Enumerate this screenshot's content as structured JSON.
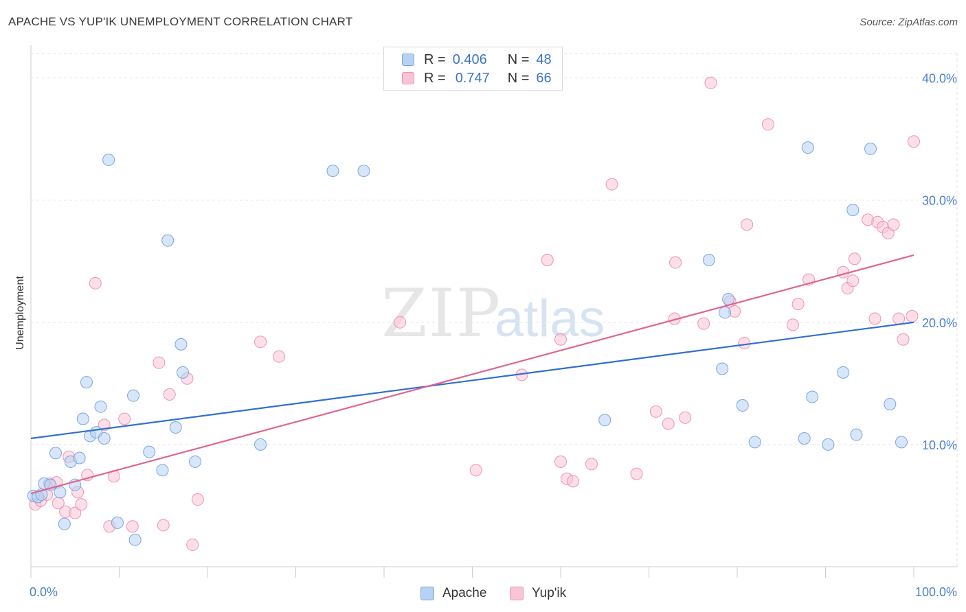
{
  "title": "APACHE VS YUP'IK UNEMPLOYMENT CORRELATION CHART",
  "source": "Source: ZipAtlas.com",
  "watermark": {
    "zip": "ZIP",
    "atlas": "atlas"
  },
  "colors": {
    "apache_fill": "#b7d1f3",
    "apache_stroke": "#7aa5e0",
    "apache_line": "#2f6fcf",
    "yupik_fill": "#f9c4d5",
    "yupik_stroke": "#ec94b1",
    "yupik_line": "#e0648f",
    "tick_text": "#4a80cf",
    "grid": "#e2e2e2"
  },
  "legend": {
    "rows": [
      {
        "r_label": "R =",
        "r_value": "0.406",
        "n_label": "N =",
        "n_value": "48"
      },
      {
        "r_label": "R =",
        "r_value": "0.747",
        "n_label": "N =",
        "n_value": "66"
      }
    ]
  },
  "bottom_legend": {
    "apache": "Apache",
    "yupik": "Yup'ik"
  },
  "chart_data": {
    "type": "scatter",
    "title": "APACHE VS YUP'IK UNEMPLOYMENT CORRELATION CHART",
    "xlabel": "",
    "ylabel": "Unemployment",
    "xlim": [
      0,
      100
    ],
    "ylim": [
      0,
      42
    ],
    "x_tick_labels": [
      "0.0%",
      "100.0%"
    ],
    "y_ticks": [
      10,
      20,
      30,
      40
    ],
    "y_tick_labels": [
      "10.0%",
      "20.0%",
      "30.0%",
      "40.0%"
    ],
    "grid": true,
    "legend_position": "top-center",
    "series": [
      {
        "name": "Apache",
        "R": 0.406,
        "N": 48,
        "trendline": {
          "x": [
            0,
            100
          ],
          "y": [
            10.5,
            20.0
          ]
        },
        "points": [
          [
            0.3,
            5.8
          ],
          [
            0.8,
            5.7
          ],
          [
            1.2,
            5.9
          ],
          [
            1.5,
            6.8
          ],
          [
            2.2,
            6.7
          ],
          [
            2.8,
            9.3
          ],
          [
            3.3,
            6.1
          ],
          [
            3.8,
            3.5
          ],
          [
            4.5,
            8.6
          ],
          [
            5.0,
            6.7
          ],
          [
            5.5,
            8.9
          ],
          [
            5.9,
            12.1
          ],
          [
            6.3,
            15.1
          ],
          [
            6.7,
            10.7
          ],
          [
            7.4,
            11.0
          ],
          [
            7.9,
            13.1
          ],
          [
            8.3,
            10.5
          ],
          [
            8.8,
            33.3
          ],
          [
            9.8,
            3.6
          ],
          [
            11.8,
            2.2
          ],
          [
            11.6,
            14.0
          ],
          [
            13.4,
            9.4
          ],
          [
            14.9,
            7.9
          ],
          [
            15.5,
            26.7
          ],
          [
            16.4,
            11.4
          ],
          [
            17.0,
            18.2
          ],
          [
            17.2,
            15.9
          ],
          [
            18.6,
            8.6
          ],
          [
            26.0,
            10.0
          ],
          [
            34.2,
            32.4
          ],
          [
            37.7,
            32.4
          ],
          [
            65.0,
            12.0
          ],
          [
            76.8,
            25.1
          ],
          [
            79.0,
            21.9
          ],
          [
            78.6,
            20.8
          ],
          [
            78.3,
            16.2
          ],
          [
            80.6,
            13.2
          ],
          [
            82.0,
            10.2
          ],
          [
            88.0,
            34.3
          ],
          [
            87.6,
            10.5
          ],
          [
            88.5,
            13.9
          ],
          [
            90.3,
            10.0
          ],
          [
            92.0,
            15.9
          ],
          [
            93.1,
            29.2
          ],
          [
            93.5,
            10.8
          ],
          [
            95.1,
            34.2
          ],
          [
            97.3,
            13.3
          ],
          [
            98.6,
            10.2
          ]
        ]
      },
      {
        "name": "Yup'ik",
        "R": 0.747,
        "N": 66,
        "trendline": {
          "x": [
            0,
            100
          ],
          "y": [
            6.0,
            25.5
          ]
        },
        "points": [
          [
            0.5,
            5.1
          ],
          [
            1.1,
            5.4
          ],
          [
            1.8,
            5.9
          ],
          [
            2.1,
            6.8
          ],
          [
            2.9,
            6.9
          ],
          [
            3.1,
            5.2
          ],
          [
            3.9,
            4.5
          ],
          [
            4.3,
            9.0
          ],
          [
            5.0,
            4.4
          ],
          [
            5.3,
            6.1
          ],
          [
            5.7,
            5.1
          ],
          [
            6.4,
            7.5
          ],
          [
            7.3,
            23.2
          ],
          [
            8.3,
            11.6
          ],
          [
            8.9,
            3.3
          ],
          [
            9.4,
            7.4
          ],
          [
            10.6,
            12.1
          ],
          [
            11.5,
            3.3
          ],
          [
            14.5,
            16.7
          ],
          [
            15.0,
            3.4
          ],
          [
            15.7,
            14.1
          ],
          [
            17.7,
            15.4
          ],
          [
            18.3,
            1.8
          ],
          [
            18.9,
            5.5
          ],
          [
            26.0,
            18.4
          ],
          [
            28.1,
            17.2
          ],
          [
            41.8,
            20.0
          ],
          [
            50.4,
            7.9
          ],
          [
            55.6,
            15.7
          ],
          [
            58.5,
            25.1
          ],
          [
            60.0,
            18.6
          ],
          [
            60.0,
            8.6
          ],
          [
            60.7,
            7.2
          ],
          [
            61.4,
            7.0
          ],
          [
            63.5,
            8.4
          ],
          [
            65.8,
            31.3
          ],
          [
            68.6,
            7.6
          ],
          [
            70.8,
            12.7
          ],
          [
            72.2,
            11.7
          ],
          [
            72.9,
            20.3
          ],
          [
            73.0,
            24.9
          ],
          [
            74.1,
            12.2
          ],
          [
            76.2,
            19.9
          ],
          [
            77.0,
            39.6
          ],
          [
            79.2,
            21.7
          ],
          [
            79.7,
            20.9
          ],
          [
            80.8,
            18.3
          ],
          [
            81.1,
            28.0
          ],
          [
            83.5,
            36.2
          ],
          [
            86.3,
            19.8
          ],
          [
            86.9,
            21.5
          ],
          [
            88.1,
            23.5
          ],
          [
            92.0,
            24.1
          ],
          [
            92.5,
            22.8
          ],
          [
            93.1,
            23.4
          ],
          [
            93.3,
            25.2
          ],
          [
            94.8,
            28.4
          ],
          [
            95.9,
            28.2
          ],
          [
            96.5,
            27.8
          ],
          [
            97.1,
            27.3
          ],
          [
            97.7,
            28.0
          ],
          [
            98.3,
            20.3
          ],
          [
            98.8,
            18.6
          ],
          [
            99.8,
            20.5
          ],
          [
            100.0,
            34.8
          ],
          [
            95.6,
            20.3
          ]
        ]
      }
    ]
  }
}
